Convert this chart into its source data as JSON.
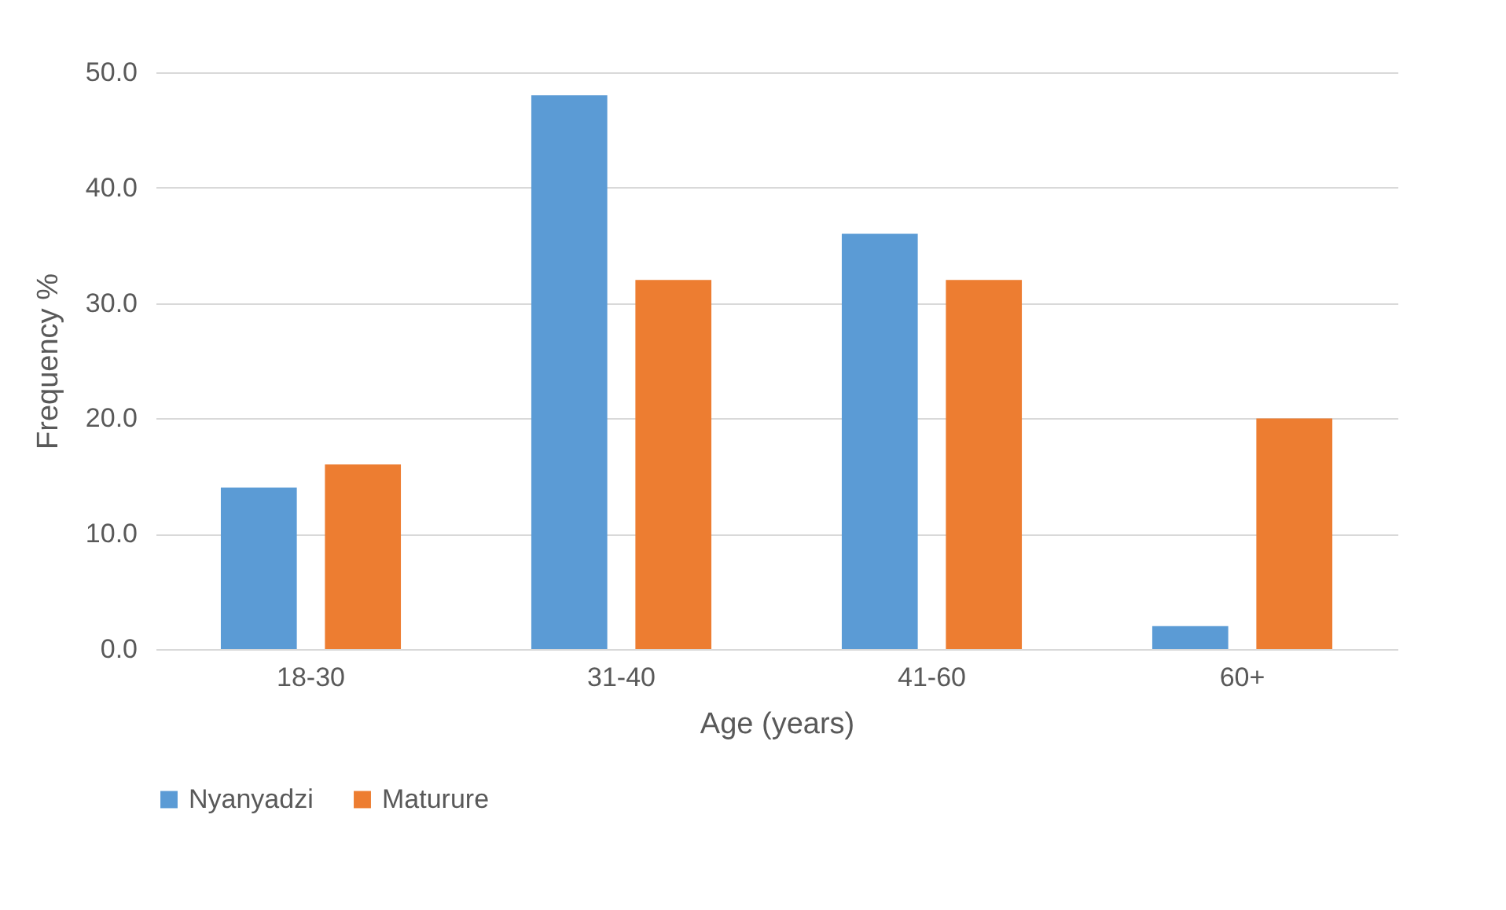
{
  "chart_data": {
    "type": "bar",
    "xlabel": "Age (years)",
    "ylabel": "Frequency %",
    "categories": [
      "18-30",
      "31-40",
      "41-60",
      "60+"
    ],
    "series": [
      {
        "name": "Nyanyadzi",
        "color": "#5b9bd5",
        "values": [
          14,
          48,
          36,
          2
        ]
      },
      {
        "name": "Maturure",
        "color": "#ed7d31",
        "values": [
          16,
          32,
          32,
          20
        ]
      }
    ],
    "ylim": [
      0,
      50
    ],
    "yticks": [
      {
        "value": 0,
        "label": "0.0"
      },
      {
        "value": 10,
        "label": "10.0"
      },
      {
        "value": 20,
        "label": "20.0"
      },
      {
        "value": 30,
        "label": "30.0"
      },
      {
        "value": 40,
        "label": "40.0"
      },
      {
        "value": 50,
        "label": "50.0"
      }
    ],
    "grid": "y",
    "legend": "bottom"
  }
}
